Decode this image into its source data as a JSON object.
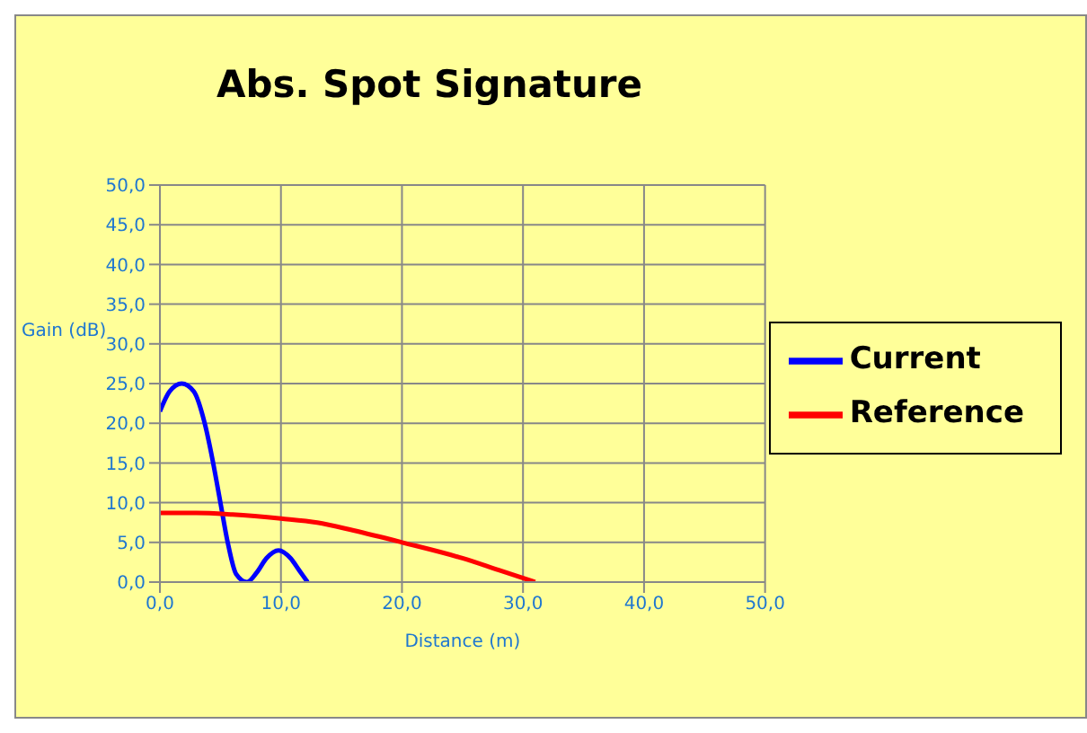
{
  "chart_data": {
    "type": "line",
    "title": "Abs. Spot Signature",
    "xlabel": "Distance (m)",
    "ylabel": "Gain (dB)",
    "xlim": [
      0,
      50
    ],
    "xticks": [
      {
        "value": 0,
        "label": "0,0"
      },
      {
        "value": 10,
        "label": "10,0"
      },
      {
        "value": 20,
        "label": "20,0"
      },
      {
        "value": 30,
        "label": "30,0"
      },
      {
        "value": 40,
        "label": "40,0"
      },
      {
        "value": 50,
        "label": "50,0"
      }
    ],
    "ylim": [
      0,
      50
    ],
    "yticks": [
      {
        "value": 0,
        "label": "0,0"
      },
      {
        "value": 5,
        "label": "5,0"
      },
      {
        "value": 10,
        "label": "10,0"
      },
      {
        "value": 15,
        "label": "15,0"
      },
      {
        "value": 20,
        "label": "20,0"
      },
      {
        "value": 25,
        "label": "25,0"
      },
      {
        "value": 30,
        "label": "30,0"
      },
      {
        "value": 35,
        "label": "35,0"
      },
      {
        "value": 40,
        "label": "40,0"
      },
      {
        "value": 45,
        "label": "45,0"
      },
      {
        "value": 50,
        "label": "50,0"
      }
    ],
    "grid": true,
    "legend": "right",
    "marker": "none",
    "series": [
      {
        "name": "Current",
        "color": "#0000ff",
        "x": [
          0,
          0.8,
          1.8,
          2.8,
          3.7,
          4.4,
          5,
          5.6,
          6.3,
          7.2,
          8,
          8.8,
          9.8,
          10.8,
          11.5,
          12.2
        ],
        "values": [
          21.5,
          24,
          25,
          24,
          20,
          15,
          10,
          5,
          1,
          0,
          1.2,
          3,
          4,
          3,
          1.5,
          0
        ]
      },
      {
        "name": "Reference",
        "color": "#ff0000",
        "x": [
          0,
          3,
          6,
          10,
          13,
          16,
          20,
          25,
          28,
          31
        ],
        "values": [
          8.7,
          8.7,
          8.5,
          8,
          7.5,
          6.5,
          5,
          3,
          1.5,
          0
        ]
      }
    ]
  }
}
